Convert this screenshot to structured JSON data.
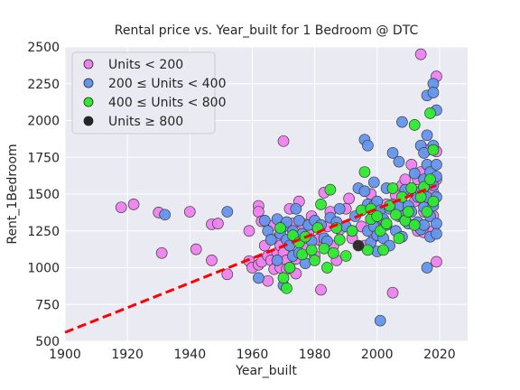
{
  "chart_data": {
    "type": "scatter",
    "title": "Rental price vs. Year_built for 1 Bedroom @ DTC",
    "xlabel": "Year_built",
    "ylabel": "Rent_1Bedroom",
    "xlim": [
      1900,
      2029
    ],
    "ylim": [
      500,
      2500
    ],
    "xticks": [
      1900,
      1920,
      1940,
      1960,
      1980,
      2000,
      2020
    ],
    "yticks": [
      500,
      750,
      1000,
      1250,
      1500,
      1750,
      2000,
      2250,
      2500
    ],
    "grid": true,
    "legend_position": "top-left",
    "series": [
      {
        "name": "Units < 200",
        "color": "#ee82ee",
        "points": [
          [
            1918,
            1410
          ],
          [
            1922,
            1430
          ],
          [
            1930,
            1375
          ],
          [
            1931,
            1100
          ],
          [
            1940,
            1380
          ],
          [
            1942,
            1125
          ],
          [
            1947,
            1050
          ],
          [
            1947,
            1295
          ],
          [
            1949,
            1300
          ],
          [
            1952,
            955
          ],
          [
            1959,
            1045
          ],
          [
            1959,
            1250
          ],
          [
            1960,
            1000
          ],
          [
            1962,
            1420
          ],
          [
            1962,
            1380
          ],
          [
            1962,
            1020
          ],
          [
            1963,
            1315
          ],
          [
            1963,
            1040
          ],
          [
            1964,
            1150
          ],
          [
            1965,
            910
          ],
          [
            1965,
            1080
          ],
          [
            1966,
            1050
          ],
          [
            1967,
            990
          ],
          [
            1967,
            1290
          ],
          [
            1968,
            1100
          ],
          [
            1968,
            1200
          ],
          [
            1969,
            1150
          ],
          [
            1969,
            1000
          ],
          [
            1970,
            1860
          ],
          [
            1970,
            1100
          ],
          [
            1970,
            1280
          ],
          [
            1971,
            1050
          ],
          [
            1971,
            990
          ],
          [
            1972,
            1400
          ],
          [
            1972,
            1150
          ],
          [
            1973,
            1200
          ],
          [
            1973,
            1300
          ],
          [
            1974,
            960
          ],
          [
            1974,
            1060
          ],
          [
            1975,
            1450
          ],
          [
            1975,
            1180
          ],
          [
            1976,
            1300
          ],
          [
            1977,
            1130
          ],
          [
            1978,
            1230
          ],
          [
            1979,
            1350
          ],
          [
            1980,
            1080
          ],
          [
            1981,
            1190
          ],
          [
            1982,
            850
          ],
          [
            1983,
            1510
          ],
          [
            1983,
            1160
          ],
          [
            1984,
            1280
          ],
          [
            1985,
            1380
          ],
          [
            1986,
            1150
          ],
          [
            1987,
            1050
          ],
          [
            1988,
            1260
          ],
          [
            1990,
            1400
          ],
          [
            1991,
            1470
          ],
          [
            1992,
            1200
          ],
          [
            1995,
            1280
          ],
          [
            1996,
            1150
          ],
          [
            1998,
            1500
          ],
          [
            1999,
            1210
          ],
          [
            2000,
            1380
          ],
          [
            2001,
            1330
          ],
          [
            2003,
            1430
          ],
          [
            2005,
            830
          ],
          [
            2006,
            1490
          ],
          [
            2007,
            1350
          ],
          [
            2008,
            1560
          ],
          [
            2009,
            1600
          ],
          [
            2010,
            1520
          ],
          [
            2011,
            1700
          ],
          [
            2012,
            1450
          ],
          [
            2013,
            1600
          ],
          [
            2013,
            1250
          ],
          [
            2014,
            2450
          ],
          [
            2014,
            1650
          ],
          [
            2015,
            1380
          ],
          [
            2015,
            1240
          ],
          [
            2016,
            1550
          ],
          [
            2016,
            1800
          ],
          [
            2017,
            1420
          ],
          [
            2017,
            1480
          ],
          [
            2018,
            1350
          ],
          [
            2018,
            1250
          ],
          [
            2019,
            1600
          ],
          [
            2019,
            1790
          ],
          [
            2019,
            2300
          ],
          [
            2019,
            1040
          ],
          [
            2018,
            1510
          ]
        ]
      },
      {
        "name": "200 ≤ Units < 400",
        "color": "#6495ed",
        "points": [
          [
            1932,
            1360
          ],
          [
            1952,
            1380
          ],
          [
            1962,
            930
          ],
          [
            1964,
            1320
          ],
          [
            1965,
            1250
          ],
          [
            1966,
            1190
          ],
          [
            1968,
            1330
          ],
          [
            1968,
            1050
          ],
          [
            1969,
            1230
          ],
          [
            1970,
            1280
          ],
          [
            1970,
            880
          ],
          [
            1971,
            1190
          ],
          [
            1971,
            1310
          ],
          [
            1972,
            1150
          ],
          [
            1972,
            1000
          ],
          [
            1973,
            1250
          ],
          [
            1973,
            1080
          ],
          [
            1974,
            1400
          ],
          [
            1975,
            1100
          ],
          [
            1975,
            1320
          ],
          [
            1976,
            1230
          ],
          [
            1977,
            1030
          ],
          [
            1978,
            1290
          ],
          [
            1979,
            1180
          ],
          [
            1980,
            1320
          ],
          [
            1982,
            1290
          ],
          [
            1983,
            1200
          ],
          [
            1984,
            1180
          ],
          [
            1985,
            1340
          ],
          [
            1987,
            1310
          ],
          [
            1988,
            1400
          ],
          [
            1990,
            1280
          ],
          [
            1992,
            1250
          ],
          [
            1993,
            1350
          ],
          [
            1994,
            1540
          ],
          [
            1995,
            1390
          ],
          [
            1996,
            1870
          ],
          [
            1996,
            1520
          ],
          [
            1997,
            1830
          ],
          [
            1997,
            1430
          ],
          [
            1997,
            1250
          ],
          [
            1998,
            1330
          ],
          [
            1998,
            1170
          ],
          [
            1999,
            1580
          ],
          [
            1999,
            1420
          ],
          [
            1999,
            1280
          ],
          [
            2000,
            1450
          ],
          [
            2000,
            1220
          ],
          [
            2000,
            1110
          ],
          [
            2001,
            640
          ],
          [
            2001,
            1390
          ],
          [
            2002,
            1330
          ],
          [
            2002,
            1200
          ],
          [
            2003,
            1540
          ],
          [
            2003,
            1290
          ],
          [
            2004,
            1400
          ],
          [
            2004,
            1150
          ],
          [
            2005,
            1780
          ],
          [
            2005,
            1430
          ],
          [
            2006,
            1250
          ],
          [
            2007,
            1420
          ],
          [
            2007,
            1720
          ],
          [
            2008,
            1990
          ],
          [
            2008,
            1350
          ],
          [
            2008,
            1210
          ],
          [
            2009,
            1530
          ],
          [
            2010,
            1300
          ],
          [
            2010,
            1420
          ],
          [
            2011,
            1380
          ],
          [
            2012,
            1640
          ],
          [
            2013,
            1480
          ],
          [
            2013,
            1310
          ],
          [
            2014,
            1830
          ],
          [
            2014,
            1520
          ],
          [
            2014,
            1260
          ],
          [
            2015,
            1780
          ],
          [
            2015,
            1600
          ],
          [
            2015,
            1410
          ],
          [
            2015,
            1290
          ],
          [
            2016,
            2170
          ],
          [
            2016,
            1900
          ],
          [
            2016,
            1700
          ],
          [
            2016,
            1480
          ],
          [
            2016,
            1000
          ],
          [
            2017,
            1650
          ],
          [
            2017,
            1350
          ],
          [
            2017,
            1210
          ],
          [
            2018,
            2250
          ],
          [
            2018,
            2190
          ],
          [
            2018,
            1830
          ],
          [
            2018,
            1560
          ],
          [
            2018,
            1420
          ],
          [
            2019,
            2070
          ],
          [
            2019,
            1700
          ],
          [
            2019,
            1480
          ],
          [
            2019,
            1300
          ],
          [
            2019,
            1230
          ],
          [
            2019,
            1620
          ]
        ]
      },
      {
        "name": "400 ≤ Units < 800",
        "color": "#2eea2e",
        "points": [
          [
            1969,
            1270
          ],
          [
            1970,
            930
          ],
          [
            1971,
            860
          ],
          [
            1972,
            1000
          ],
          [
            1973,
            1220
          ],
          [
            1975,
            1170
          ],
          [
            1976,
            1090
          ],
          [
            1977,
            1210
          ],
          [
            1979,
            1120
          ],
          [
            1980,
            1050
          ],
          [
            1981,
            1270
          ],
          [
            1982,
            1430
          ],
          [
            1983,
            1130
          ],
          [
            1984,
            1000
          ],
          [
            1985,
            1530
          ],
          [
            1986,
            1100
          ],
          [
            1987,
            1270
          ],
          [
            1988,
            1190
          ],
          [
            1990,
            1080
          ],
          [
            1992,
            1250
          ],
          [
            1995,
            1390
          ],
          [
            1996,
            1650
          ],
          [
            1997,
            1120
          ],
          [
            1998,
            1330
          ],
          [
            1998,
            1400
          ],
          [
            2000,
            1350
          ],
          [
            2001,
            1250
          ],
          [
            2002,
            1120
          ],
          [
            2003,
            1300
          ],
          [
            2004,
            1420
          ],
          [
            2005,
            1540
          ],
          [
            2006,
            1360
          ],
          [
            2007,
            1200
          ],
          [
            2008,
            1480
          ],
          [
            2009,
            1320
          ],
          [
            2010,
            1380
          ],
          [
            2011,
            1540
          ],
          [
            2012,
            1970
          ],
          [
            2012,
            1290
          ],
          [
            2014,
            1480
          ],
          [
            2015,
            1550
          ],
          [
            2016,
            1380
          ],
          [
            2017,
            2050
          ],
          [
            2017,
            1600
          ],
          [
            2018,
            1800
          ],
          [
            2018,
            1450
          ]
        ]
      },
      {
        "name": "Units ≥ 800",
        "color": "#262626",
        "points": [
          [
            1994,
            1150
          ]
        ]
      }
    ],
    "trendline": {
      "style": "dashed",
      "color": "#ff0000",
      "points": [
        [
          1900,
          560
        ],
        [
          2019,
          1560
        ]
      ]
    }
  }
}
